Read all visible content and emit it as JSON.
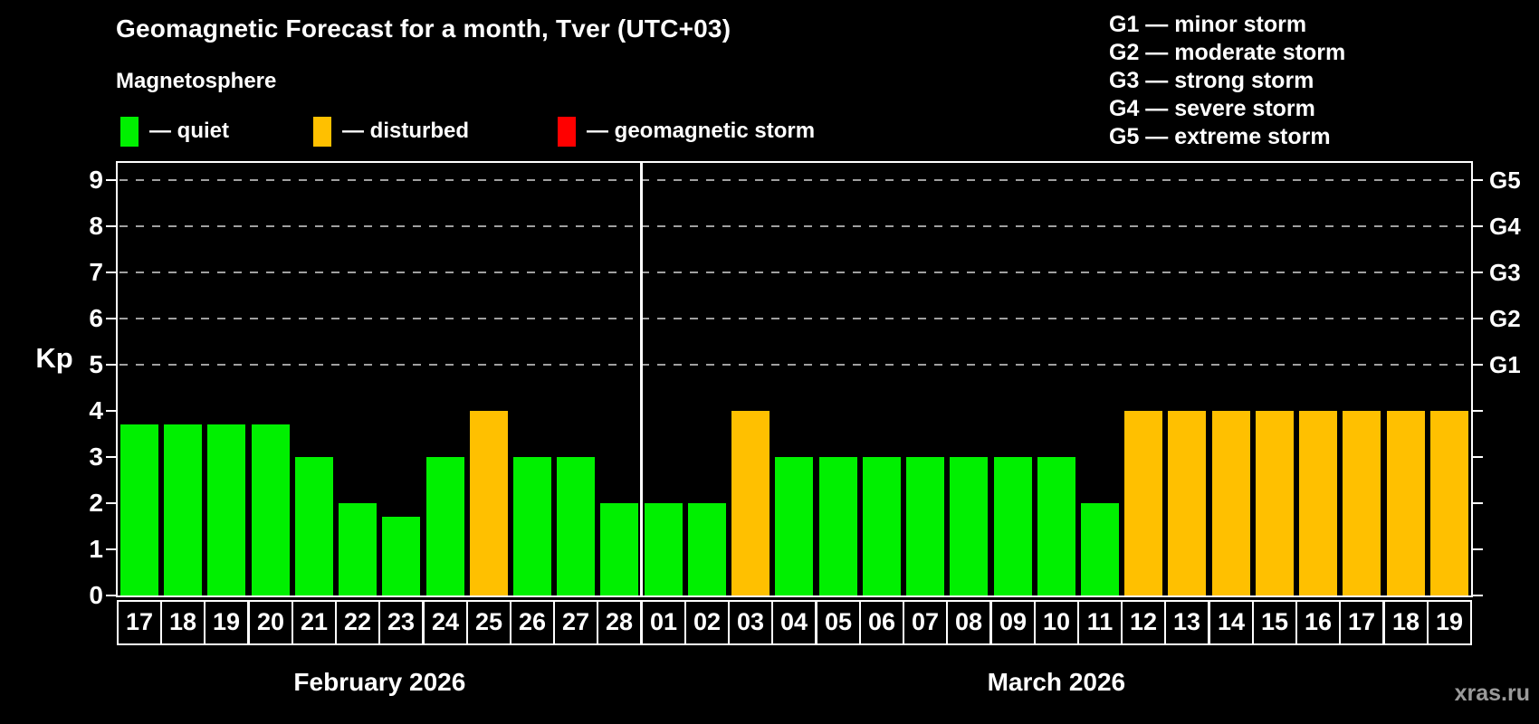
{
  "header": {
    "title": "Geomagnetic Forecast for a month, Tver (UTC+03)",
    "subtitle": "Magnetosphere"
  },
  "legend": {
    "items": [
      {
        "key": "quiet",
        "label": "— quiet"
      },
      {
        "key": "disturbed",
        "label": "— disturbed"
      },
      {
        "key": "storm",
        "label": "— geomagnetic storm"
      }
    ]
  },
  "storm_scale_legend": [
    "G1 — minor storm",
    "G2 — moderate storm",
    "G3 — strong storm",
    "G4 — severe storm",
    "G5 — extreme storm"
  ],
  "colors": {
    "quiet": "#00f000",
    "disturbed": "#ffc000",
    "storm": "#ff0000",
    "grid": "#a0a0a0",
    "axis": "#ffffff",
    "watermark": "#9a9a9a"
  },
  "watermark": "xras.ru",
  "chart_data": {
    "type": "bar",
    "title": "Geomagnetic Forecast for a month, Tver (UTC+03)",
    "ylabel": "Kp",
    "ylim": [
      0,
      9.4
    ],
    "yticks": [
      0,
      1,
      2,
      3,
      4,
      5,
      6,
      7,
      8,
      9
    ],
    "grid_levels": [
      5,
      6,
      7,
      8,
      9
    ],
    "grid_style": "dashed",
    "legend_position": "top",
    "right_axis": [
      {
        "kp": 5,
        "label": "G1"
      },
      {
        "kp": 6,
        "label": "G2"
      },
      {
        "kp": 7,
        "label": "G3"
      },
      {
        "kp": 8,
        "label": "G4"
      },
      {
        "kp": 9,
        "label": "G5"
      }
    ],
    "months": [
      {
        "label": "February 2026",
        "days": [
          {
            "day": "17",
            "kp": 3.7,
            "status": "quiet"
          },
          {
            "day": "18",
            "kp": 3.7,
            "status": "quiet"
          },
          {
            "day": "19",
            "kp": 3.7,
            "status": "quiet"
          },
          {
            "day": "20",
            "kp": 3.7,
            "status": "quiet"
          },
          {
            "day": "21",
            "kp": 3,
            "status": "quiet"
          },
          {
            "day": "22",
            "kp": 2,
            "status": "quiet"
          },
          {
            "day": "23",
            "kp": 1.7,
            "status": "quiet"
          },
          {
            "day": "24",
            "kp": 3,
            "status": "quiet"
          },
          {
            "day": "25",
            "kp": 4,
            "status": "disturbed"
          },
          {
            "day": "26",
            "kp": 3,
            "status": "quiet"
          },
          {
            "day": "27",
            "kp": 3,
            "status": "quiet"
          },
          {
            "day": "28",
            "kp": 2,
            "status": "quiet"
          }
        ]
      },
      {
        "label": "March 2026",
        "days": [
          {
            "day": "01",
            "kp": 2,
            "status": "quiet"
          },
          {
            "day": "02",
            "kp": 2,
            "status": "quiet"
          },
          {
            "day": "03",
            "kp": 4,
            "status": "disturbed"
          },
          {
            "day": "04",
            "kp": 3,
            "status": "quiet"
          },
          {
            "day": "05",
            "kp": 3,
            "status": "quiet"
          },
          {
            "day": "06",
            "kp": 3,
            "status": "quiet"
          },
          {
            "day": "07",
            "kp": 3,
            "status": "quiet"
          },
          {
            "day": "08",
            "kp": 3,
            "status": "quiet"
          },
          {
            "day": "09",
            "kp": 3,
            "status": "quiet"
          },
          {
            "day": "10",
            "kp": 3,
            "status": "quiet"
          },
          {
            "day": "11",
            "kp": 2,
            "status": "quiet"
          },
          {
            "day": "12",
            "kp": 4,
            "status": "disturbed"
          },
          {
            "day": "13",
            "kp": 4,
            "status": "disturbed"
          },
          {
            "day": "14",
            "kp": 4,
            "status": "disturbed"
          },
          {
            "day": "15",
            "kp": 4,
            "status": "disturbed"
          },
          {
            "day": "16",
            "kp": 4,
            "status": "disturbed"
          },
          {
            "day": "17",
            "kp": 4,
            "status": "disturbed"
          },
          {
            "day": "18",
            "kp": 4,
            "status": "disturbed"
          },
          {
            "day": "19",
            "kp": 4,
            "status": "disturbed"
          }
        ]
      }
    ]
  }
}
